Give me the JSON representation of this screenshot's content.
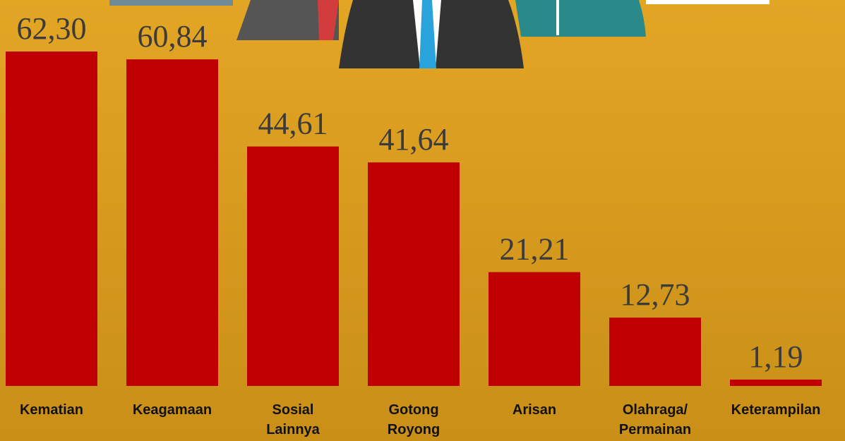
{
  "chart_data": {
    "type": "bar",
    "categories": [
      "Kematian",
      "Keagamaan",
      "Sosial\nLainnya",
      "Gotong\nRoyong",
      "Arisan",
      "Olahraga/\nPermainan",
      "Keterampilan"
    ],
    "values": [
      62.3,
      60.84,
      44.61,
      41.64,
      21.21,
      12.73,
      1.19
    ],
    "value_labels": [
      "62,30",
      "60,84",
      "44,61",
      "41,64",
      "21,21",
      "12,73",
      "1,19"
    ],
    "color": "#c00000"
  }
}
